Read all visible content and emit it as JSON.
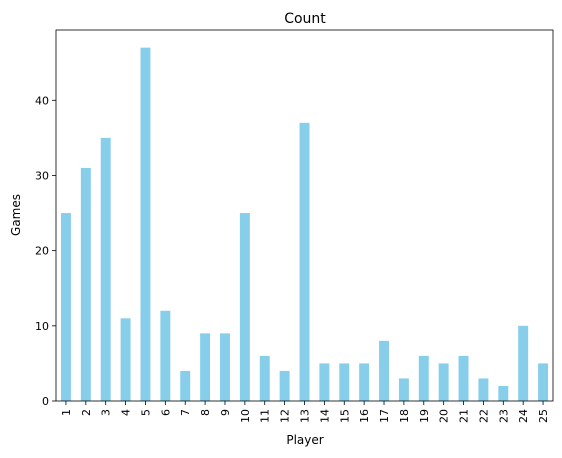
{
  "chart_data": {
    "type": "bar",
    "title": "Count",
    "xlabel": "Player",
    "ylabel": "Games",
    "categories": [
      "1",
      "2",
      "3",
      "4",
      "5",
      "6",
      "7",
      "8",
      "9",
      "10",
      "11",
      "12",
      "13",
      "14",
      "15",
      "16",
      "17",
      "18",
      "19",
      "20",
      "21",
      "22",
      "23",
      "24",
      "25"
    ],
    "values": [
      25,
      31,
      35,
      11,
      47,
      12,
      4,
      9,
      9,
      25,
      6,
      4,
      37,
      5,
      5,
      5,
      8,
      3,
      6,
      5,
      6,
      3,
      2,
      10,
      5
    ],
    "ylim": [
      0,
      49.35
    ],
    "yticks": [
      0,
      10,
      20,
      30,
      40
    ],
    "bar_color": "#87CEEB",
    "grid": false,
    "legend": false
  }
}
